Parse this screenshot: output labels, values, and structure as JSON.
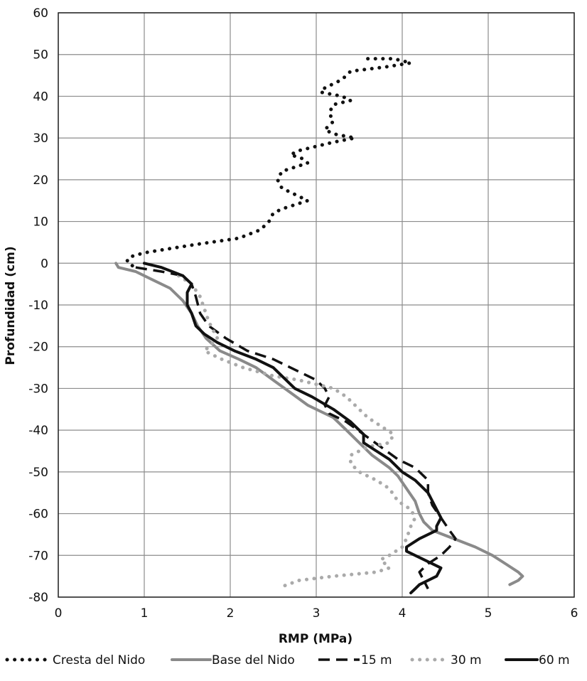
{
  "chart_data": {
    "type": "line",
    "title": "",
    "xlabel": "RMP (MPa)",
    "ylabel": "Profundidad (cm)",
    "xlim": [
      0,
      6
    ],
    "ylim": [
      -80,
      60
    ],
    "x_ticks": [
      "0",
      "1",
      "2",
      "3",
      "4",
      "5",
      "6"
    ],
    "y_ticks": [
      "60",
      "50",
      "40",
      "30",
      "20",
      "10",
      "0",
      "-10",
      "-20",
      "-30",
      "-40",
      "-50",
      "-60",
      "-70",
      "-80"
    ],
    "grid": true,
    "legend_position": "bottom",
    "series": [
      {
        "name": "Cresta del Nido",
        "color": "#111111",
        "style": "dotted",
        "points": [
          [
            3.6,
            49
          ],
          [
            3.9,
            49
          ],
          [
            4.1,
            48
          ],
          [
            3.8,
            47
          ],
          [
            3.4,
            46
          ],
          [
            3.3,
            44
          ],
          [
            3.1,
            42
          ],
          [
            3.05,
            41
          ],
          [
            3.3,
            40
          ],
          [
            3.4,
            39
          ],
          [
            3.2,
            38
          ],
          [
            3.15,
            36
          ],
          [
            3.2,
            34
          ],
          [
            3.1,
            32
          ],
          [
            3.2,
            31
          ],
          [
            3.45,
            30
          ],
          [
            3.2,
            29
          ],
          [
            3.0,
            28
          ],
          [
            2.8,
            27
          ],
          [
            2.7,
            26
          ],
          [
            2.85,
            25
          ],
          [
            2.9,
            24
          ],
          [
            2.75,
            23
          ],
          [
            2.6,
            22
          ],
          [
            2.55,
            20
          ],
          [
            2.6,
            18
          ],
          [
            2.7,
            17
          ],
          [
            2.8,
            16
          ],
          [
            2.9,
            15
          ],
          [
            2.75,
            14
          ],
          [
            2.6,
            13
          ],
          [
            2.5,
            12
          ],
          [
            2.45,
            10
          ],
          [
            2.35,
            8
          ],
          [
            2.1,
            6
          ],
          [
            1.6,
            4.5
          ],
          [
            1.3,
            3.5
          ],
          [
            1.0,
            2.5
          ],
          [
            0.83,
            1.5
          ],
          [
            0.8,
            0.5
          ],
          [
            0.85,
            -0.5
          ],
          [
            0.92,
            -1
          ]
        ]
      },
      {
        "name": "Base del Nido",
        "color": "#8a8a8a",
        "style": "solid",
        "points": [
          [
            0.67,
            0
          ],
          [
            0.7,
            -1
          ],
          [
            0.9,
            -2
          ],
          [
            1.1,
            -4
          ],
          [
            1.3,
            -6
          ],
          [
            1.45,
            -9
          ],
          [
            1.55,
            -12
          ],
          [
            1.62,
            -15
          ],
          [
            1.72,
            -18
          ],
          [
            1.88,
            -21
          ],
          [
            2.1,
            -23
          ],
          [
            2.3,
            -25
          ],
          [
            2.5,
            -28
          ],
          [
            2.7,
            -31
          ],
          [
            2.9,
            -34
          ],
          [
            3.2,
            -37
          ],
          [
            3.35,
            -40
          ],
          [
            3.5,
            -43
          ],
          [
            3.65,
            -46
          ],
          [
            3.85,
            -49
          ],
          [
            3.95,
            -51
          ],
          [
            4.05,
            -54
          ],
          [
            4.15,
            -57
          ],
          [
            4.2,
            -60
          ],
          [
            4.25,
            -62
          ],
          [
            4.35,
            -64
          ],
          [
            4.6,
            -66
          ],
          [
            4.85,
            -68
          ],
          [
            5.05,
            -70
          ],
          [
            5.2,
            -72
          ],
          [
            5.35,
            -74
          ],
          [
            5.4,
            -75
          ],
          [
            5.35,
            -76
          ],
          [
            5.25,
            -77
          ]
        ]
      },
      {
        "name": "15 m",
        "color": "#111111",
        "style": "dashed",
        "points": [
          [
            0.9,
            -1
          ],
          [
            1.2,
            -2
          ],
          [
            1.45,
            -3
          ],
          [
            1.55,
            -5
          ],
          [
            1.6,
            -8
          ],
          [
            1.65,
            -12
          ],
          [
            1.75,
            -15
          ],
          [
            1.95,
            -18
          ],
          [
            2.2,
            -21
          ],
          [
            2.5,
            -23
          ],
          [
            2.8,
            -26
          ],
          [
            3.0,
            -28
          ],
          [
            3.1,
            -30
          ],
          [
            3.15,
            -32
          ],
          [
            3.1,
            -34
          ],
          [
            3.15,
            -36
          ],
          [
            3.35,
            -38
          ],
          [
            3.55,
            -41
          ],
          [
            3.75,
            -44
          ],
          [
            3.95,
            -47
          ],
          [
            4.15,
            -49
          ],
          [
            4.3,
            -52
          ],
          [
            4.3,
            -55
          ],
          [
            4.35,
            -58
          ],
          [
            4.45,
            -61
          ],
          [
            4.55,
            -64
          ],
          [
            4.62,
            -66
          ],
          [
            4.55,
            -68
          ],
          [
            4.45,
            -70
          ],
          [
            4.3,
            -72
          ],
          [
            4.2,
            -74
          ],
          [
            4.25,
            -76
          ],
          [
            4.3,
            -78
          ]
        ]
      },
      {
        "name": "30 m",
        "color": "#aaaaaa",
        "style": "dotted",
        "points": [
          [
            1.4,
            -3
          ],
          [
            1.55,
            -5
          ],
          [
            1.65,
            -8
          ],
          [
            1.7,
            -11
          ],
          [
            1.75,
            -14
          ],
          [
            1.85,
            -18
          ],
          [
            1.7,
            -21
          ],
          [
            1.9,
            -23
          ],
          [
            2.15,
            -25
          ],
          [
            2.5,
            -27
          ],
          [
            2.8,
            -28
          ],
          [
            3.0,
            -29
          ],
          [
            3.2,
            -30
          ],
          [
            3.35,
            -32
          ],
          [
            3.5,
            -35
          ],
          [
            3.6,
            -37
          ],
          [
            3.75,
            -39
          ],
          [
            3.9,
            -41
          ],
          [
            3.85,
            -43
          ],
          [
            3.6,
            -44
          ],
          [
            3.4,
            -46
          ],
          [
            3.4,
            -48
          ],
          [
            3.5,
            -50
          ],
          [
            3.7,
            -52
          ],
          [
            3.85,
            -54
          ],
          [
            3.95,
            -57
          ],
          [
            4.1,
            -59
          ],
          [
            4.15,
            -61
          ],
          [
            4.1,
            -63
          ],
          [
            4.05,
            -66
          ],
          [
            4.0,
            -68
          ],
          [
            3.85,
            -70
          ],
          [
            3.75,
            -71
          ],
          [
            3.85,
            -73
          ],
          [
            3.7,
            -74
          ],
          [
            3.2,
            -75
          ],
          [
            2.8,
            -76
          ],
          [
            2.6,
            -77.5
          ]
        ]
      },
      {
        "name": "60 m",
        "color": "#111111",
        "style": "solid",
        "points": [
          [
            1.0,
            0
          ],
          [
            1.2,
            -1
          ],
          [
            1.45,
            -3
          ],
          [
            1.55,
            -5
          ],
          [
            1.5,
            -7
          ],
          [
            1.5,
            -10
          ],
          [
            1.55,
            -12
          ],
          [
            1.6,
            -15
          ],
          [
            1.7,
            -17
          ],
          [
            1.85,
            -19
          ],
          [
            2.05,
            -21
          ],
          [
            2.3,
            -23
          ],
          [
            2.5,
            -25
          ],
          [
            2.6,
            -27
          ],
          [
            2.75,
            -30
          ],
          [
            2.95,
            -32
          ],
          [
            3.2,
            -35
          ],
          [
            3.4,
            -38
          ],
          [
            3.55,
            -41
          ],
          [
            3.55,
            -43
          ],
          [
            3.7,
            -45
          ],
          [
            3.85,
            -47
          ],
          [
            4.0,
            -50
          ],
          [
            4.15,
            -52
          ],
          [
            4.3,
            -55
          ],
          [
            4.35,
            -57
          ],
          [
            4.4,
            -59
          ],
          [
            4.45,
            -61
          ],
          [
            4.4,
            -63
          ],
          [
            4.4,
            -64
          ],
          [
            4.2,
            -66
          ],
          [
            4.05,
            -68
          ],
          [
            4.05,
            -69
          ],
          [
            4.25,
            -71
          ],
          [
            4.45,
            -73
          ],
          [
            4.4,
            -75
          ],
          [
            4.2,
            -77
          ],
          [
            4.15,
            -78
          ],
          [
            4.1,
            -79
          ]
        ]
      }
    ]
  }
}
